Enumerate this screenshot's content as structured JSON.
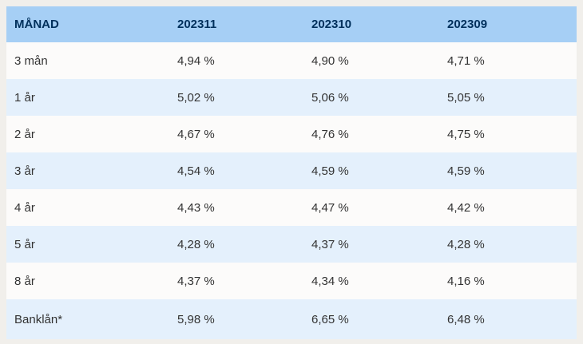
{
  "page": {
    "background": "#f1efeb"
  },
  "colors": {
    "header_bg": "#a6cff5",
    "header_text": "#00305c",
    "row_bg": "#fcfbfa",
    "row_alt_bg": "#e4f0fc",
    "body_text": "#333333"
  },
  "chart_data": {
    "type": "table",
    "columns": [
      "MÅNAD",
      "202311",
      "202310",
      "202309"
    ],
    "rows": [
      {
        "label": "3 mån",
        "values": [
          "4,94 %",
          "4,90 %",
          "4,71 %"
        ]
      },
      {
        "label": "1 år",
        "values": [
          "5,02 %",
          "5,06 %",
          "5,05 %"
        ]
      },
      {
        "label": "2 år",
        "values": [
          "4,67 %",
          "4,76 %",
          "4,75 %"
        ]
      },
      {
        "label": "3 år",
        "values": [
          "4,54 %",
          "4,59 %",
          "4,59 %"
        ]
      },
      {
        "label": "4 år",
        "values": [
          "4,43 %",
          "4,47 %",
          "4,42 %"
        ]
      },
      {
        "label": "5 år",
        "values": [
          "4,28 %",
          "4,37 %",
          "4,28 %"
        ]
      },
      {
        "label": "8 år",
        "values": [
          "4,37 %",
          "4,34 %",
          "4,16 %"
        ]
      },
      {
        "label": "Banklån*",
        "values": [
          "5,98 %",
          "6,65 %",
          "6,48 %"
        ]
      }
    ]
  }
}
